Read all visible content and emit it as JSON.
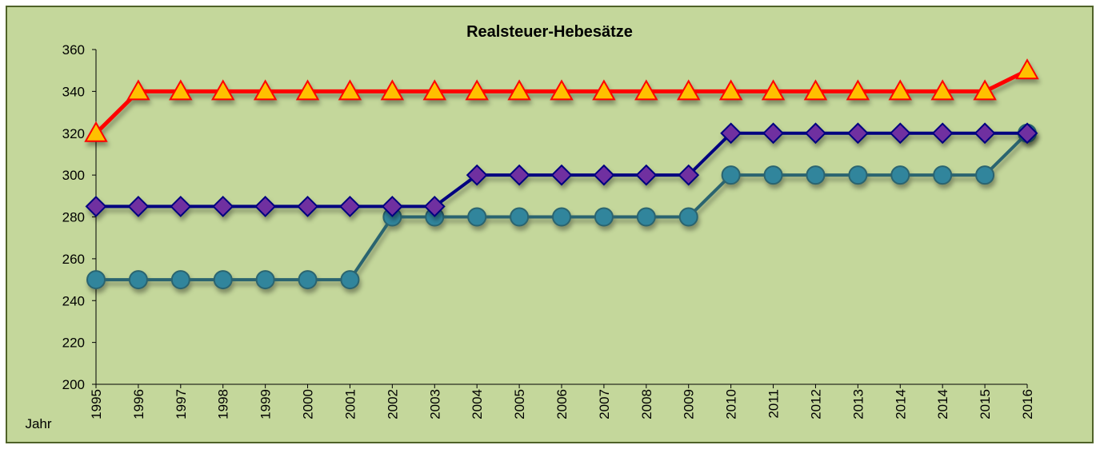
{
  "chart_data": {
    "type": "line",
    "title": "Realsteuer-Hebesätze",
    "xlabel": "Jahr",
    "categories": [
      "1995",
      "1996",
      "1997",
      "1998",
      "1999",
      "2000",
      "2001",
      "2002",
      "2003",
      "2004",
      "2005",
      "2006",
      "2007",
      "2008",
      "2009",
      "2010",
      "2011",
      "2012",
      "2013",
      "2014",
      "2014",
      "2015",
      "2016"
    ],
    "series": [
      {
        "color": "#ff0000",
        "marker": "triangle",
        "marker_color": "#ffc000",
        "values": [
          320,
          340,
          340,
          340,
          340,
          340,
          340,
          340,
          340,
          340,
          340,
          340,
          340,
          340,
          340,
          340,
          340,
          340,
          340,
          340,
          340,
          340,
          350
        ]
      },
      {
        "color": "#000080",
        "marker": "diamond",
        "marker_color": "#7030a0",
        "values": [
          285,
          285,
          285,
          285,
          285,
          285,
          285,
          285,
          285,
          300,
          300,
          300,
          300,
          300,
          300,
          320,
          320,
          320,
          320,
          320,
          320,
          320,
          320
        ]
      },
      {
        "color": "#2a6470",
        "marker": "circle",
        "marker_color": "#31859c",
        "values": [
          250,
          250,
          250,
          250,
          250,
          250,
          250,
          280,
          280,
          280,
          280,
          280,
          280,
          280,
          280,
          300,
          300,
          300,
          300,
          300,
          300,
          300,
          320
        ]
      }
    ],
    "ylim": [
      200,
      360
    ],
    "yticks": [
      200,
      220,
      240,
      260,
      280,
      300,
      320,
      340,
      360
    ],
    "grid": false
  }
}
